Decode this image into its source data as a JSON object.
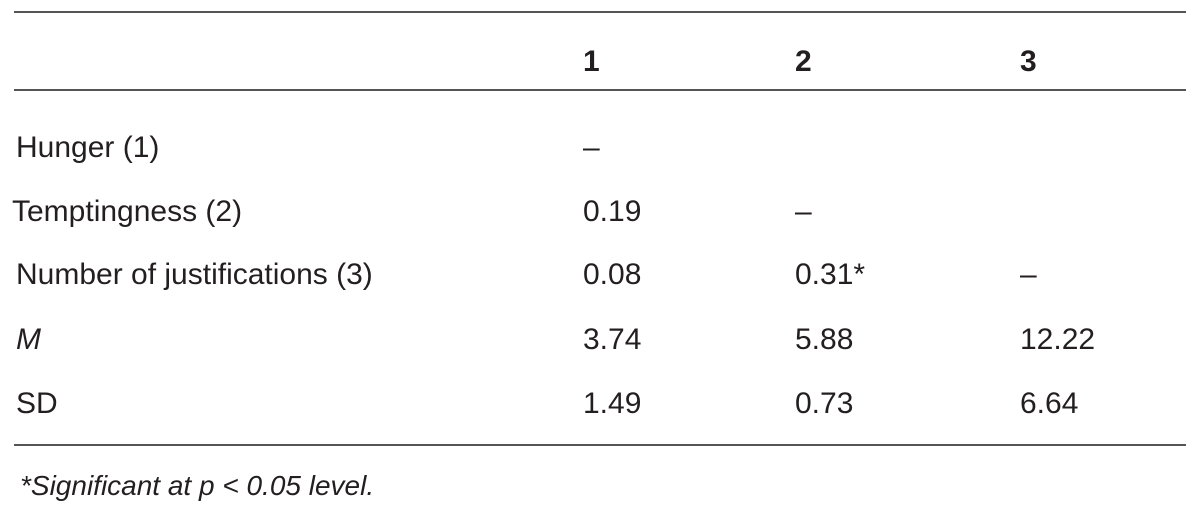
{
  "table": {
    "header": [
      null,
      "1",
      "2",
      "3"
    ],
    "rows": [
      [
        "Hunger (1)",
        "–",
        null,
        null
      ],
      [
        "Temptingness (2)",
        "0.19",
        "–",
        null
      ],
      [
        "Number of justifications (3)",
        "0.08",
        "0.31*",
        "–"
      ],
      [
        "M",
        "3.74",
        "5.88",
        "12.22"
      ],
      [
        "SD",
        "1.49",
        "0.73",
        "6.64"
      ]
    ],
    "footnote": "*Significant at p < 0.05 level."
  }
}
